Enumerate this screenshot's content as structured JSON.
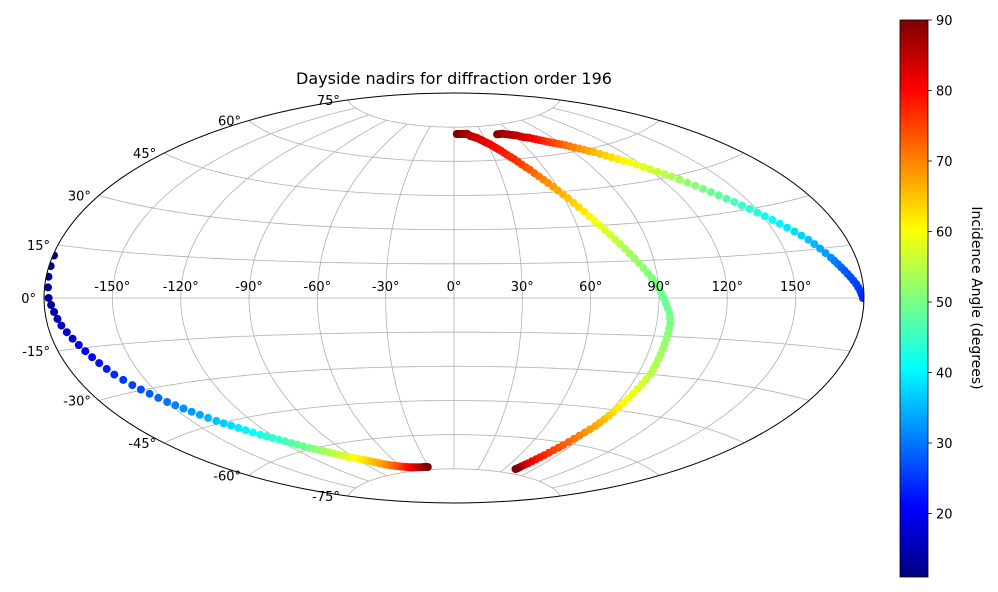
{
  "chart_data": {
    "type": "scatter",
    "projection": "aitoff",
    "title": "Dayside nadirs for diffraction order 196",
    "xlabel": "",
    "ylabel": "",
    "grid": true,
    "lon_ticks": [
      "-150°",
      "-120°",
      "-90°",
      "-60°",
      "-30°",
      "0°",
      "30°",
      "60°",
      "90°",
      "120°",
      "150°"
    ],
    "lat_ticks": [
      "75°",
      "60°",
      "45°",
      "30°",
      "15°",
      "0°",
      "-15°",
      "-30°",
      "-45°",
      "-60°",
      "-75°"
    ],
    "colorbar": {
      "label": "Incidence Angle (degrees)",
      "range": [
        11,
        90
      ],
      "ticks": [
        "20",
        "30",
        "40",
        "50",
        "60",
        "70",
        "80",
        "90"
      ],
      "colormap": "jet"
    },
    "series": [
      {
        "lon": [
          3,
          5,
          8,
          11,
          14,
          17,
          20,
          23,
          26,
          29,
          32,
          35,
          38,
          41,
          44,
          47,
          50,
          53,
          56,
          59,
          62,
          65,
          68,
          71,
          74,
          77,
          80,
          83,
          86,
          89,
          91,
          93,
          95,
          96,
          96,
          96,
          96,
          96,
          96,
          95,
          94,
          93,
          92,
          91,
          90,
          88,
          86,
          84,
          82,
          80,
          78,
          76,
          74,
          73,
          72
        ],
        "lat": [
          72,
          72,
          72,
          72,
          72,
          71,
          70.5,
          70,
          69,
          68,
          67,
          65.5,
          64,
          62,
          60,
          57.5,
          55,
          52,
          49,
          45.5,
          42,
          38,
          34,
          30,
          26,
          22,
          18,
          14,
          10,
          6,
          2,
          -2,
          -6,
          -10,
          -14,
          -18,
          -22,
          -26,
          -30,
          -34,
          -38,
          -42,
          -46,
          -49,
          -52,
          -55,
          -58,
          -61,
          -63.5,
          -66,
          -68,
          -70,
          -71.5,
          -72.5,
          -73
        ],
        "incidence": [
          90,
          90,
          89,
          88,
          87,
          86,
          85,
          84,
          83,
          82,
          81,
          80,
          79,
          78,
          77,
          75,
          73,
          71,
          69,
          67,
          65,
          63,
          61,
          59,
          57,
          55,
          53,
          52,
          51,
          50,
          49.5,
          49,
          49.5,
          50,
          51,
          52,
          53,
          54,
          55,
          57,
          59,
          61,
          63,
          65,
          67,
          69,
          71,
          73,
          75,
          77,
          79,
          82,
          85,
          88,
          90
        ]
      },
      {
        "lon": [
          45,
          48,
          51,
          55,
          59,
          63,
          67,
          71,
          75,
          79,
          83,
          87,
          91,
          95,
          99,
          103,
          107,
          111,
          115,
          119,
          123,
          127,
          131,
          135,
          139,
          143,
          147,
          151,
          155,
          159,
          163,
          166,
          169,
          171,
          173,
          175,
          177,
          178.5,
          179.5
        ],
        "lat": [
          71,
          71,
          71,
          70.5,
          70,
          69.5,
          68.5,
          68,
          67,
          66,
          65,
          64,
          63,
          61.5,
          60,
          58.5,
          56.5,
          54.5,
          52.5,
          50,
          47.5,
          45,
          42,
          39,
          36,
          33,
          30,
          27,
          24,
          21,
          18,
          15,
          12,
          10,
          8,
          6,
          4,
          2,
          0
        ],
        "incidence": [
          90,
          89,
          88,
          87,
          86,
          85,
          84,
          82,
          80,
          78,
          76,
          74,
          72,
          70,
          68,
          66,
          64,
          62,
          60,
          58,
          56,
          54,
          52,
          50,
          48,
          46,
          44,
          42,
          40,
          38,
          36,
          34,
          32,
          30,
          28,
          27,
          26,
          25,
          24
        ]
      },
      {
        "lon": [
          -179.5,
          -179,
          -178,
          -176,
          -174,
          -171,
          -168,
          -165,
          -162,
          -158,
          -154,
          -150,
          -146,
          -142,
          -138,
          -134,
          -130,
          -126,
          -122,
          -118,
          -114,
          -110,
          -106,
          -102,
          -98,
          -94,
          -90,
          -86,
          -82,
          -78,
          -74,
          -70,
          -66,
          -62,
          -58,
          -54,
          -50,
          -46,
          -42,
          -38,
          -34,
          -31
        ],
        "lat": [
          12,
          6,
          0,
          -4,
          -8,
          -12,
          -16,
          -20,
          -24,
          -28,
          -31.5,
          -35,
          -38,
          -41,
          -44,
          -46.5,
          -49,
          -51.5,
          -53.5,
          -55.5,
          -57.5,
          -59.5,
          -61,
          -62.5,
          -64,
          -65.5,
          -66.5,
          -67.5,
          -68.5,
          -69.5,
          -70.5,
          -71.2,
          -71.8,
          -72.3,
          -72.7,
          -73,
          -73.3,
          -73.5,
          -73.6,
          -73.7,
          -73.7,
          -73.8
        ],
        "incidence": [
          11,
          12,
          13,
          14,
          16,
          18,
          20,
          22,
          24,
          26,
          28,
          30,
          32,
          34,
          36,
          38,
          40,
          42,
          44,
          46,
          48,
          50,
          52,
          54,
          56,
          58,
          60,
          62,
          64,
          66,
          68,
          70,
          72,
          74,
          76,
          78,
          80,
          82,
          84,
          86,
          88,
          90
        ]
      }
    ]
  }
}
